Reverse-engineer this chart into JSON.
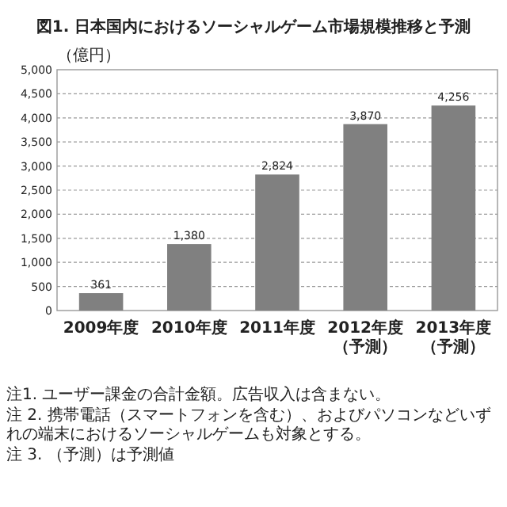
{
  "chart_data": {
    "type": "bar",
    "title": "図1. 日本国内におけるソーシャルゲーム市場規模推移と予測",
    "ylabel": "（億円）",
    "categories": [
      "2009年度",
      "2010年度",
      "2011年度",
      "2012年度（予測）",
      "2013年度（予測）"
    ],
    "values": [
      361,
      1380,
      2824,
      3870,
      4256
    ],
    "color": "#808080",
    "value_labels": [
      "361",
      "1,380",
      "2,824",
      "3,870",
      "4,256"
    ],
    "ylim": [
      0,
      5000
    ],
    "yticks": [
      {
        "value": 0,
        "label": "0"
      },
      {
        "value": 500,
        "label": "500"
      },
      {
        "value": 1000,
        "label": "1,000"
      },
      {
        "value": 1500,
        "label": "1,500"
      },
      {
        "value": 2000,
        "label": "2,000"
      },
      {
        "value": 2500,
        "label": "2,500"
      },
      {
        "value": 3000,
        "label": "3,000"
      },
      {
        "value": 3500,
        "label": "3,500"
      },
      {
        "value": 4000,
        "label": "4,000"
      },
      {
        "value": 4500,
        "label": "4,500"
      },
      {
        "value": 5000,
        "label": "5,000"
      }
    ],
    "grid": "y",
    "annotations": [
      "注1. ユーザー課金の合計金額。広告収入は含まない。",
      "注 2. 携帯電話（スマートフォンを含む）、およびパソコンなどいずれの端末におけるソーシャルゲームも対象とする。",
      "注 3. （予測）は予測値"
    ]
  }
}
